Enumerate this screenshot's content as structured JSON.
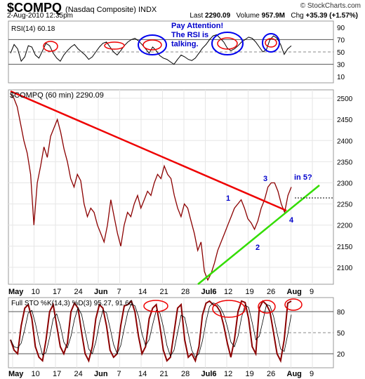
{
  "header": {
    "symbol": "$COMPQ",
    "name": "(Nasdaq Composite) INDX",
    "watermark": "© StockCharts.com",
    "datetime": "2-Aug-2010 12:35pm",
    "last_label": "Last",
    "last": "2290.09",
    "volume_label": "Volume",
    "volume": "957.9M",
    "chg_label": "Chg",
    "chg": "+35.39 (+1.57%)"
  },
  "colors": {
    "price_line": "#8b0000",
    "trend_down": "#ee0000",
    "trend_up": "#33dd00",
    "annotation_text": "#0000cc",
    "rsi_circle": "#ee0000",
    "attention_circle": "#0000ee"
  },
  "chart_data": [
    {
      "type": "line",
      "title": "RSI(14) 60.18",
      "ylim": [
        0,
        100
      ],
      "y_ticks": [
        "10",
        "30",
        "50",
        "70",
        "90"
      ],
      "reference_lines": [
        30,
        50,
        70
      ],
      "series": [
        {
          "values": [
            48,
            62,
            55,
            35,
            42,
            60,
            58,
            45,
            40,
            52,
            64,
            60,
            48,
            40,
            35,
            45,
            52,
            58,
            62,
            55,
            50,
            45,
            38,
            42,
            50,
            58,
            64,
            66,
            58,
            50,
            45,
            52,
            60,
            66,
            70,
            72,
            68,
            62,
            55,
            48,
            58,
            52,
            44,
            40,
            38,
            34,
            30,
            38,
            45,
            42,
            38,
            36,
            40,
            48,
            56,
            62,
            70,
            76,
            78,
            72,
            66,
            56,
            52,
            55,
            60,
            66,
            70,
            74,
            72,
            66,
            58,
            50,
            54,
            70,
            76,
            72,
            62,
            46,
            55,
            60
          ]
        }
      ],
      "annotation": [
        "Pay Attention!",
        "The RSI is",
        "talking."
      ]
    },
    {
      "type": "line",
      "title": "$COMPQ (60 min) 2290.09",
      "x_ticks": [
        "May",
        "10",
        "17",
        "24",
        "Jun",
        "7",
        "14",
        "21",
        "28",
        "Jul6",
        "12",
        "19",
        "26",
        "Aug",
        "9"
      ],
      "y_ticks": [
        "2100",
        "2150",
        "2200",
        "2250",
        "2300",
        "2350",
        "2400",
        "2450",
        "2500"
      ],
      "ylim": [
        2060,
        2520
      ],
      "series": [
        {
          "values": [
            2510,
            2500,
            2480,
            2440,
            2400,
            2370,
            2320,
            2200,
            2300,
            2340,
            2385,
            2360,
            2410,
            2430,
            2450,
            2420,
            2380,
            2350,
            2310,
            2290,
            2320,
            2305,
            2250,
            2220,
            2240,
            2230,
            2200,
            2180,
            2160,
            2200,
            2260,
            2220,
            2180,
            2150,
            2200,
            2230,
            2220,
            2250,
            2270,
            2240,
            2260,
            2280,
            2270,
            2300,
            2320,
            2310,
            2340,
            2320,
            2310,
            2270,
            2240,
            2220,
            2250,
            2240,
            2210,
            2180,
            2140,
            2160,
            2090,
            2070,
            2085,
            2110,
            2140,
            2160,
            2180,
            2200,
            2220,
            2240,
            2250,
            2260,
            2240,
            2215,
            2205,
            2190,
            2210,
            2240,
            2260,
            2290,
            2300,
            2300,
            2280,
            2250,
            2230,
            2270,
            2290
          ]
        }
      ],
      "trend_lines": [
        "resistance (falling)",
        "support (rising)"
      ],
      "annotations": [
        "1",
        "2",
        "3",
        "4",
        "in 5?"
      ]
    },
    {
      "type": "line",
      "title": "Full STO %K(14,3) %D(3) 95.27, 91.66",
      "y_ticks": [
        "20",
        "50",
        "80"
      ],
      "reference_lines": [
        20,
        50,
        80
      ],
      "ylim": [
        0,
        100
      ],
      "series": [
        {
          "values": [
            40,
            25,
            20,
            60,
            85,
            90,
            70,
            30,
            15,
            10,
            40,
            80,
            90,
            60,
            30,
            20,
            35,
            80,
            92,
            85,
            50,
            20,
            10,
            30,
            70,
            90,
            85,
            60,
            25,
            15,
            20,
            60,
            88,
            90,
            95,
            80,
            45,
            20,
            30,
            70,
            85,
            90,
            60,
            25,
            10,
            15,
            50,
            85,
            90,
            40,
            15,
            20,
            10,
            30,
            75,
            92,
            95,
            90,
            88,
            80,
            60,
            35,
            15,
            40,
            80,
            95,
            93,
            70,
            30,
            20,
            85,
            95,
            90,
            80,
            50,
            20,
            10,
            40,
            92,
            95
          ]
        }
      ]
    }
  ]
}
